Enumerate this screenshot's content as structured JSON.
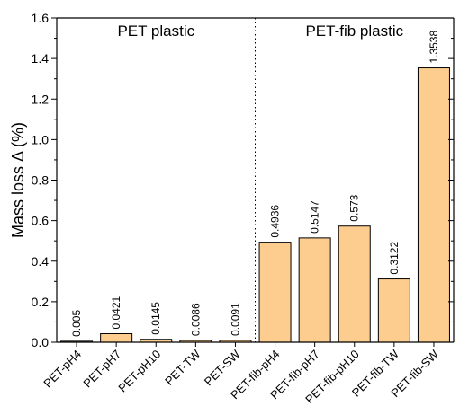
{
  "chart_data": {
    "type": "bar",
    "categories": [
      "PET-pH4",
      "PET-pH7",
      "PET-pH10",
      "PET-TW",
      "PET-SW",
      "PET-fib-pH4",
      "PET-fib-pH7",
      "PET-fib-pH10",
      "PET-fib-TW",
      "PET-fib-SW"
    ],
    "values": [
      0.005,
      0.0421,
      0.0145,
      0.0086,
      0.0091,
      0.4936,
      0.5147,
      0.573,
      0.3122,
      1.3538
    ],
    "value_labels": [
      "0.005",
      "0.0421",
      "0.0145",
      "0.0086",
      "0.0091",
      "0.4936",
      "0.5147",
      "0.573",
      "0.3122",
      "1.3538"
    ],
    "ylabel": "Mass loss Δ (%)",
    "xlabel": "",
    "ylim": [
      0,
      1.6
    ],
    "yticks": [
      0.0,
      0.2,
      0.4,
      0.6,
      0.8,
      1.0,
      1.2,
      1.4,
      1.6
    ],
    "ytick_labels": [
      "0.0",
      "0.2",
      "0.4",
      "0.6",
      "0.8",
      "1.0",
      "1.2",
      "1.4",
      "1.6"
    ],
    "groups": [
      {
        "label": "PET plastic",
        "start": 0,
        "end": 4
      },
      {
        "label": "PET-fib plastic",
        "start": 5,
        "end": 9
      }
    ],
    "bar_color": "#fdcc8f",
    "bar_edge_color": "#000000",
    "divider": "dotted",
    "grid": false,
    "legend": "none"
  }
}
